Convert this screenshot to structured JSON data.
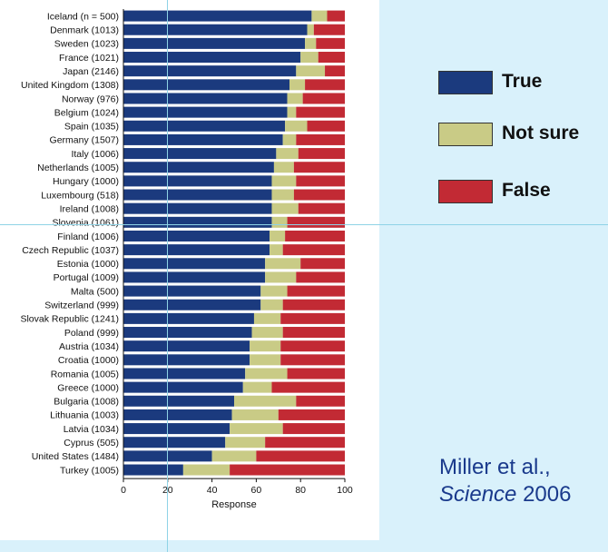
{
  "chart_data": {
    "type": "bar",
    "orientation": "horizontal",
    "stacked": true,
    "xlabel": "Response",
    "xlim": [
      0,
      100
    ],
    "xticks": [
      0,
      20,
      40,
      60,
      80,
      100
    ],
    "categories": [
      "Iceland (n = 500)",
      "Denmark (1013)",
      "Sweden (1023)",
      "France (1021)",
      "Japan (2146)",
      "United Kingdom (1308)",
      "Norway (976)",
      "Belgium (1024)",
      "Spain (1035)",
      "Germany (1507)",
      "Italy (1006)",
      "Netherlands (1005)",
      "Hungary (1000)",
      "Luxembourg (518)",
      "Ireland (1008)",
      "Slovenia (1061)",
      "Finland (1006)",
      "Czech Republic (1037)",
      "Estonia (1000)",
      "Portugal (1009)",
      "Malta (500)",
      "Switzerland (999)",
      "Slovak Republic (1241)",
      "Poland (999)",
      "Austria (1034)",
      "Croatia (1000)",
      "Romania (1005)",
      "Greece (1000)",
      "Bulgaria (1008)",
      "Lithuania (1003)",
      "Latvia (1034)",
      "Cyprus (505)",
      "United States (1484)",
      "Turkey (1005)"
    ],
    "series": [
      {
        "name": "True",
        "color": "#1b3a7e",
        "values": [
          85,
          83,
          82,
          80,
          78,
          75,
          74,
          74,
          73,
          72,
          69,
          68,
          67,
          67,
          67,
          67,
          66,
          66,
          64,
          64,
          62,
          62,
          59,
          58,
          57,
          57,
          55,
          54,
          50,
          49,
          48,
          46,
          40,
          27
        ]
      },
      {
        "name": "Not sure",
        "color": "#c9cb86",
        "values": [
          7,
          3,
          5,
          8,
          13,
          7,
          7,
          4,
          10,
          6,
          10,
          9,
          11,
          10,
          12,
          7,
          7,
          6,
          16,
          14,
          12,
          10,
          12,
          14,
          14,
          14,
          19,
          13,
          28,
          21,
          24,
          18,
          20,
          21
        ]
      },
      {
        "name": "False",
        "color": "#c22a34",
        "values": [
          8,
          14,
          13,
          12,
          9,
          18,
          19,
          22,
          17,
          22,
          21,
          23,
          22,
          23,
          21,
          26,
          27,
          28,
          20,
          22,
          26,
          28,
          29,
          28,
          29,
          29,
          26,
          33,
          22,
          30,
          28,
          36,
          40,
          52
        ]
      }
    ]
  },
  "legend": {
    "items": [
      {
        "label": "True",
        "color": "#1b3a7e"
      },
      {
        "label": "Not sure",
        "color": "#c9cb86"
      },
      {
        "label": "False",
        "color": "#c22a34"
      }
    ]
  },
  "citation": {
    "authors": "Miller et al.,",
    "journal": "Science",
    "year": "2006"
  }
}
